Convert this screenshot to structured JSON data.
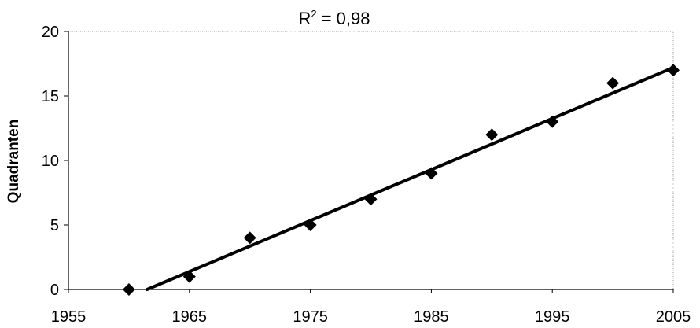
{
  "chart_data": {
    "type": "scatter",
    "title": {
      "base": "R",
      "superscript": "2",
      "rest": " = 0,98"
    },
    "xlabel": "",
    "ylabel": "Quadranten",
    "xlim": [
      1955,
      2005
    ],
    "ylim": [
      0,
      20
    ],
    "xticks": [
      1955,
      1965,
      1975,
      1985,
      1995,
      2005
    ],
    "yticks": [
      0,
      5,
      10,
      15,
      20
    ],
    "grid": false,
    "marker": "diamond",
    "points": [
      {
        "x": 1960,
        "y": 0
      },
      {
        "x": 1965,
        "y": 1
      },
      {
        "x": 1970,
        "y": 4
      },
      {
        "x": 1975,
        "y": 5
      },
      {
        "x": 1980,
        "y": 7
      },
      {
        "x": 1985,
        "y": 9
      },
      {
        "x": 1990,
        "y": 12
      },
      {
        "x": 1995,
        "y": 13
      },
      {
        "x": 2000,
        "y": 16
      },
      {
        "x": 2005,
        "y": 17
      }
    ],
    "trendline": {
      "x_start": 1961.5,
      "y_start": 0,
      "x_end": 2005,
      "y_end": 17.2
    },
    "colors": {
      "marker": "#000000",
      "line": "#000000",
      "frame": "#9a9a9a"
    }
  }
}
